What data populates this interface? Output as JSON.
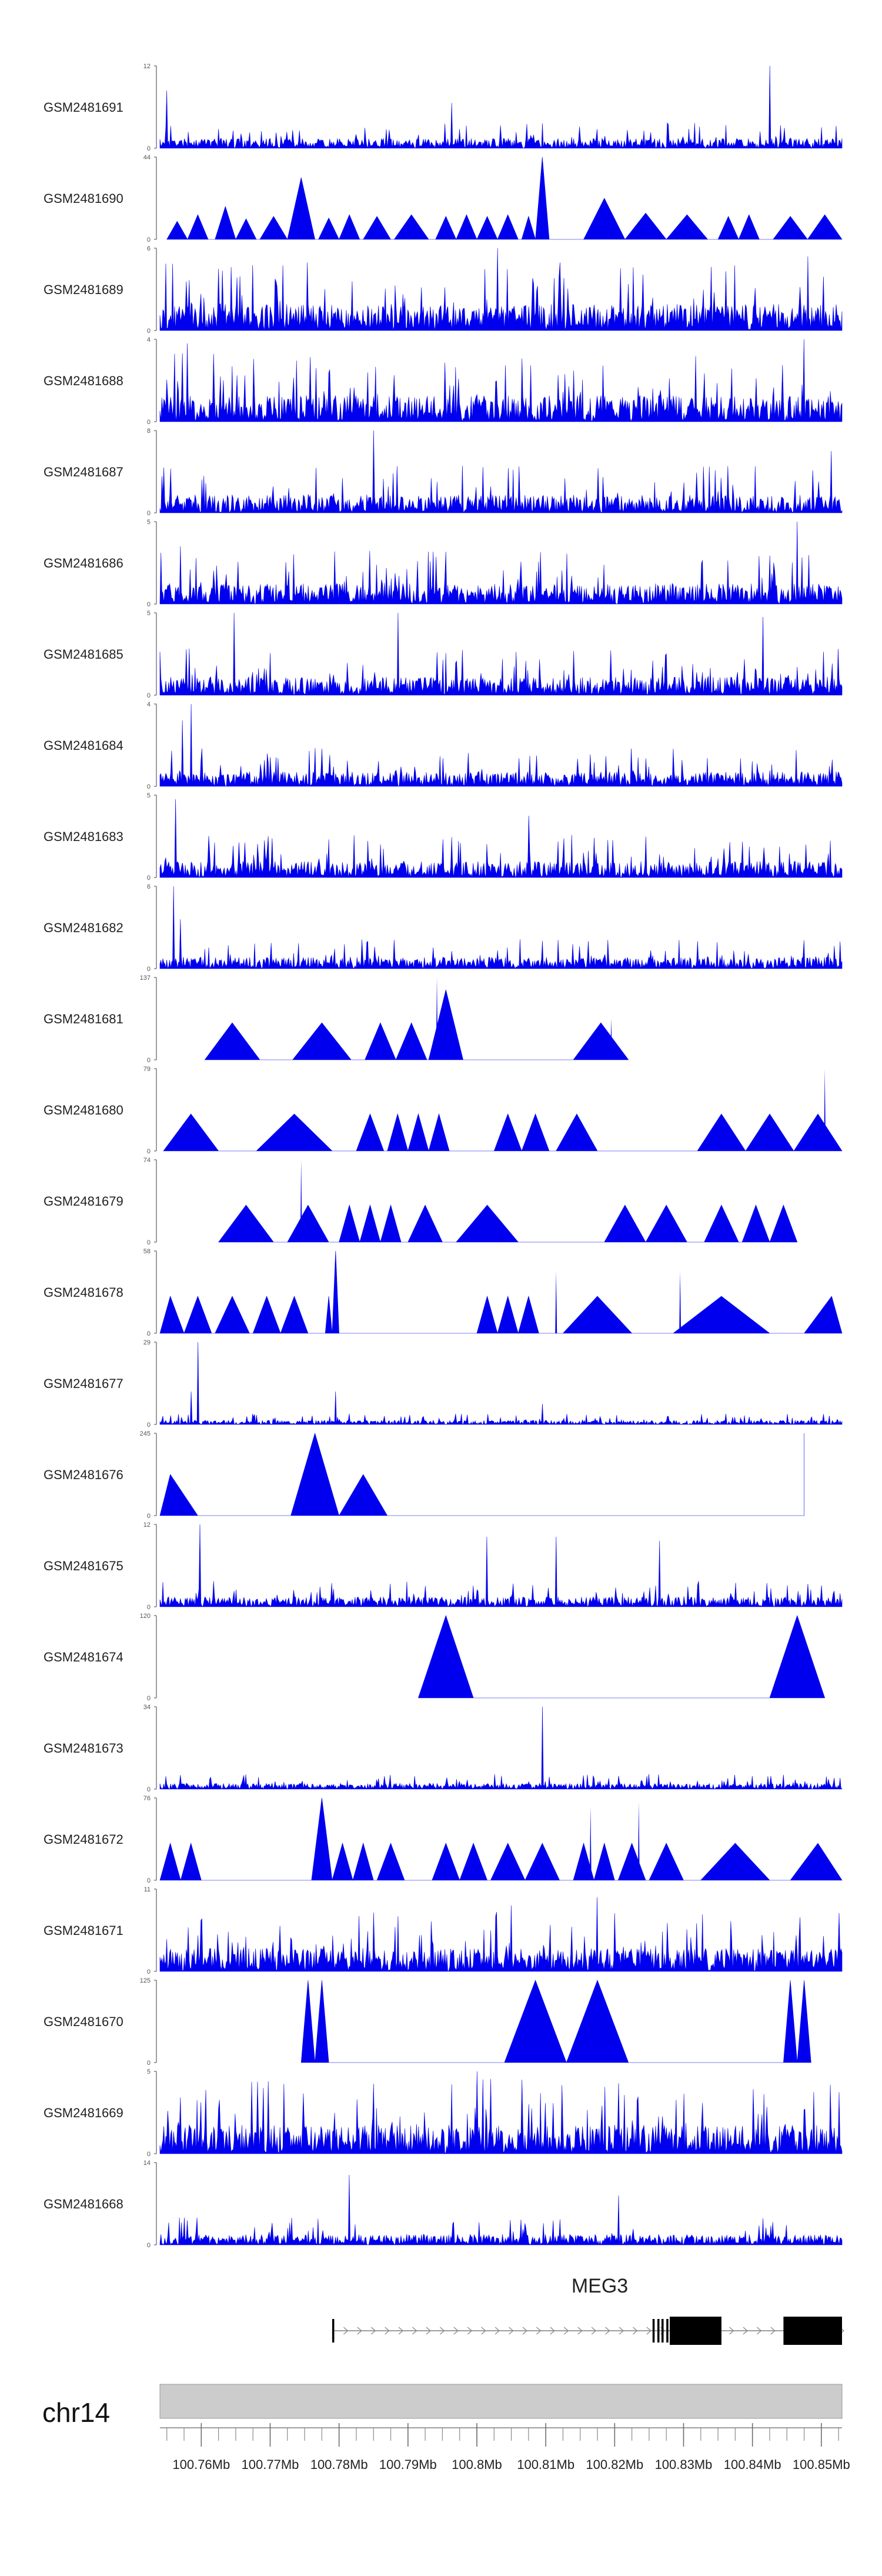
{
  "chart_data": {
    "type": "area",
    "title": "",
    "chromosome": "chr14",
    "xlim_mb": [
      100.754,
      100.853
    ],
    "color": "#0000ee",
    "tracks": [
      {
        "name": "GSM2481691",
        "ymax": "12",
        "zero": "0",
        "style": "dense",
        "seed": 11,
        "base": 0.12,
        "peaks": [
          [
            100.755,
            0.7
          ],
          [
            100.8425,
            1.0
          ],
          [
            100.7963,
            0.55
          ]
        ]
      },
      {
        "name": "GSM2481690",
        "ymax": "44",
        "zero": "0",
        "style": "tri",
        "seed": 12,
        "apexes": [
          [
            100.7565,
            0.22
          ],
          [
            100.7595,
            0.3
          ],
          [
            100.7635,
            0.4
          ],
          [
            100.7665,
            0.25
          ],
          [
            100.7705,
            0.28
          ],
          [
            100.7745,
            0.75
          ],
          [
            100.7785,
            0.26
          ],
          [
            100.7815,
            0.3
          ],
          [
            100.7855,
            0.28
          ],
          [
            100.7905,
            0.3
          ],
          [
            100.7955,
            0.28
          ],
          [
            100.7985,
            0.3
          ],
          [
            100.8015,
            0.28
          ],
          [
            100.8045,
            0.3
          ],
          [
            100.8075,
            0.28
          ],
          [
            100.8095,
            1.0
          ],
          [
            100.8185,
            0.5
          ],
          [
            100.8245,
            0.32
          ],
          [
            100.8305,
            0.3
          ],
          [
            100.8365,
            0.28
          ],
          [
            100.8395,
            0.3
          ],
          [
            100.8455,
            0.28
          ],
          [
            100.8505,
            0.3
          ]
        ],
        "spikes": [
          [
            100.8095,
            1.0
          ]
        ]
      },
      {
        "name": "GSM2481689",
        "ymax": "6",
        "zero": "0",
        "style": "dense",
        "seed": 13,
        "base": 0.32,
        "peaks": [
          [
            100.803,
            1.0
          ],
          [
            100.848,
            0.9
          ]
        ]
      },
      {
        "name": "GSM2481688",
        "ymax": "4",
        "zero": "0",
        "style": "dense",
        "seed": 14,
        "base": 0.32,
        "peaks": [
          [
            100.758,
            0.95
          ],
          [
            100.8475,
            1.0
          ]
        ]
      },
      {
        "name": "GSM2481687",
        "ymax": "8",
        "zero": "0",
        "style": "dense",
        "seed": 15,
        "base": 0.22,
        "peaks": [
          [
            100.785,
            1.0
          ],
          [
            100.8515,
            0.75
          ]
        ]
      },
      {
        "name": "GSM2481686",
        "ymax": "5",
        "zero": "0",
        "style": "dense",
        "seed": 16,
        "base": 0.25,
        "peaks": [
          [
            100.8465,
            1.0
          ],
          [
            100.757,
            0.7
          ]
        ]
      },
      {
        "name": "GSM2481685",
        "ymax": "5",
        "zero": "0",
        "style": "dense",
        "seed": 17,
        "base": 0.22,
        "peaks": [
          [
            100.7648,
            1.0
          ],
          [
            100.7885,
            1.0
          ],
          [
            100.8415,
            0.95
          ]
        ]
      },
      {
        "name": "GSM2481684",
        "ymax": "4",
        "zero": "0",
        "style": "dense",
        "seed": 18,
        "base": 0.18,
        "peaks": [
          [
            100.7585,
            1.0
          ],
          [
            100.7572,
            0.8
          ]
        ]
      },
      {
        "name": "GSM2481683",
        "ymax": "5",
        "zero": "0",
        "style": "dense",
        "seed": 19,
        "base": 0.2,
        "peaks": [
          [
            100.7563,
            0.95
          ],
          [
            100.8075,
            0.75
          ]
        ]
      },
      {
        "name": "GSM2481682",
        "ymax": "6",
        "zero": "0",
        "style": "dense",
        "seed": 20,
        "base": 0.14,
        "peaks": [
          [
            100.756,
            1.0
          ],
          [
            100.757,
            0.6
          ]
        ]
      },
      {
        "name": "GSM2481681",
        "ymax": "137",
        "zero": "0",
        "style": "tri",
        "seed": 21,
        "apexes": [
          [
            100.7645,
            0.45
          ],
          [
            100.7775,
            0.45
          ],
          [
            100.786,
            0.45
          ],
          [
            100.7905,
            0.45
          ],
          [
            100.7955,
            0.85
          ],
          [
            100.818,
            0.45
          ]
        ],
        "spikes": [
          [
            100.7942,
            1.0
          ],
          [
            100.8195,
            0.5
          ]
        ]
      },
      {
        "name": "GSM2481680",
        "ymax": "79",
        "zero": "0",
        "style": "tri",
        "seed": 22,
        "apexes": [
          [
            100.7585,
            0.45
          ],
          [
            100.7735,
            0.45
          ],
          [
            100.7845,
            0.45
          ],
          [
            100.7885,
            0.45
          ],
          [
            100.7915,
            0.45
          ],
          [
            100.7945,
            0.45
          ],
          [
            100.8045,
            0.45
          ],
          [
            100.8085,
            0.45
          ],
          [
            100.8145,
            0.45
          ],
          [
            100.8355,
            0.45
          ],
          [
            100.8425,
            0.45
          ],
          [
            100.8495,
            0.45
          ]
        ],
        "spikes": [
          [
            100.8505,
            1.0
          ]
        ]
      },
      {
        "name": "GSM2481679",
        "ymax": "74",
        "zero": "0",
        "style": "tri",
        "seed": 23,
        "apexes": [
          [
            100.7665,
            0.45
          ],
          [
            100.7755,
            0.45
          ],
          [
            100.7815,
            0.45
          ],
          [
            100.7845,
            0.45
          ],
          [
            100.7875,
            0.45
          ],
          [
            100.7925,
            0.45
          ],
          [
            100.8015,
            0.45
          ],
          [
            100.8215,
            0.45
          ],
          [
            100.8275,
            0.45
          ],
          [
            100.8355,
            0.45
          ],
          [
            100.8405,
            0.45
          ],
          [
            100.8445,
            0.45
          ]
        ],
        "spikes": [
          [
            100.7745,
            1.0
          ],
          [
            100.8015,
            0.45
          ]
        ]
      },
      {
        "name": "GSM2481678",
        "ymax": "58",
        "zero": "0",
        "style": "tri",
        "seed": 24,
        "apexes": [
          [
            100.7555,
            0.45
          ],
          [
            100.7595,
            0.45
          ],
          [
            100.7645,
            0.45
          ],
          [
            100.7695,
            0.45
          ],
          [
            100.7735,
            0.45
          ],
          [
            100.7785,
            0.45
          ],
          [
            100.7795,
            1.0
          ],
          [
            100.8015,
            0.45
          ],
          [
            100.8045,
            0.45
          ],
          [
            100.8075,
            0.45
          ],
          [
            100.8175,
            0.45
          ],
          [
            100.8355,
            0.45
          ],
          [
            100.8515,
            0.45
          ]
        ],
        "spikes": [
          [
            100.8115,
            0.75
          ],
          [
            100.8295,
            0.75
          ]
        ]
      },
      {
        "name": "GSM2481677",
        "ymax": "29",
        "zero": "0",
        "style": "dense",
        "seed": 25,
        "base": 0.05,
        "peaks": [
          [
            100.7595,
            1.0
          ],
          [
            100.7585,
            0.4
          ],
          [
            100.7795,
            0.4
          ],
          [
            100.8095,
            0.25
          ]
        ]
      },
      {
        "name": "GSM2481676",
        "ymax": "245",
        "zero": "0",
        "style": "tri",
        "seed": 26,
        "apexes": [
          [
            100.7555,
            0.5
          ],
          [
            100.7765,
            1.0
          ],
          [
            100.7835,
            0.5
          ],
          [
            100.8475,
            1.0
          ],
          [
            100.8475,
            0.45
          ]
        ],
        "spikes": []
      },
      {
        "name": "GSM2481675",
        "ymax": "12",
        "zero": "0",
        "style": "dense",
        "seed": 27,
        "base": 0.12,
        "peaks": [
          [
            100.7598,
            1.0
          ],
          [
            100.8015,
            0.85
          ],
          [
            100.8115,
            0.85
          ],
          [
            100.8265,
            0.8
          ]
        ]
      },
      {
        "name": "GSM2481674",
        "ymax": "120",
        "zero": "0",
        "style": "tri",
        "seed": 28,
        "apexes": [
          [
            100.7955,
            1.0
          ],
          [
            100.8465,
            1.0
          ]
        ],
        "spikes": []
      },
      {
        "name": "GSM2481673",
        "ymax": "34",
        "zero": "0",
        "style": "dense",
        "seed": 29,
        "base": 0.07,
        "peaks": [
          [
            100.8095,
            1.0
          ],
          [
            100.8095,
            0.9
          ]
        ]
      },
      {
        "name": "GSM2481672",
        "ymax": "76",
        "zero": "0",
        "style": "tri",
        "seed": 30,
        "apexes": [
          [
            100.7555,
            0.45
          ],
          [
            100.7585,
            0.45
          ],
          [
            100.7775,
            1.0
          ],
          [
            100.7805,
            0.45
          ],
          [
            100.7835,
            0.45
          ],
          [
            100.7875,
            0.45
          ],
          [
            100.7955,
            0.45
          ],
          [
            100.7995,
            0.45
          ],
          [
            100.8045,
            0.45
          ],
          [
            100.8095,
            0.45
          ],
          [
            100.8155,
            0.45
          ],
          [
            100.8185,
            0.45
          ],
          [
            100.8225,
            0.45
          ],
          [
            100.8275,
            0.45
          ],
          [
            100.8375,
            0.45
          ],
          [
            100.8495,
            0.45
          ]
        ],
        "spikes": [
          [
            100.8165,
            0.9
          ],
          [
            100.8235,
            0.95
          ]
        ]
      },
      {
        "name": "GSM2481671",
        "ymax": "11",
        "zero": "0",
        "style": "dense",
        "seed": 31,
        "base": 0.28,
        "peaks": [
          [
            100.8175,
            0.9
          ],
          [
            100.805,
            0.8
          ]
        ]
      },
      {
        "name": "GSM2481670",
        "ymax": "125",
        "zero": "0",
        "style": "tri",
        "seed": 32,
        "apexes": [
          [
            100.7755,
            1.0
          ],
          [
            100.7775,
            1.0
          ],
          [
            100.8085,
            1.0
          ],
          [
            100.8175,
            1.0
          ],
          [
            100.8455,
            1.0
          ],
          [
            100.8475,
            1.0
          ]
        ],
        "spikes": []
      },
      {
        "name": "GSM2481669",
        "ymax": "5",
        "zero": "0",
        "style": "dense",
        "seed": 33,
        "base": 0.35,
        "peaks": [
          [
            100.8,
            1.0
          ],
          [
            100.785,
            0.85
          ]
        ]
      },
      {
        "name": "GSM2481668",
        "ymax": "14",
        "zero": "0",
        "style": "dense",
        "seed": 34,
        "base": 0.13,
        "peaks": [
          [
            100.7815,
            0.85
          ],
          [
            100.8205,
            0.6
          ]
        ]
      }
    ],
    "gene": {
      "name": "MEG3",
      "start_mb": 100.779,
      "end_mb": 100.853,
      "exons_mb": [
        [
          100.779,
          100.7793
        ],
        [
          100.8255,
          100.8258
        ],
        [
          100.8262,
          100.8265
        ],
        [
          100.8268,
          100.8271
        ],
        [
          100.8275,
          100.8278
        ],
        [
          100.828,
          100.8355
        ],
        [
          100.8445,
          100.853
        ]
      ]
    },
    "axis": {
      "tick_labels": [
        "100.76Mb",
        "100.77Mb",
        "100.78Mb",
        "100.79Mb",
        "100.8Mb",
        "100.81Mb",
        "100.82Mb",
        "100.83Mb",
        "100.84Mb",
        "100.85Mb"
      ],
      "tick_values_mb": [
        100.76,
        100.77,
        100.78,
        100.79,
        100.8,
        100.81,
        100.82,
        100.83,
        100.84,
        100.85
      ],
      "minor_step_mb": 0.0025
    }
  }
}
